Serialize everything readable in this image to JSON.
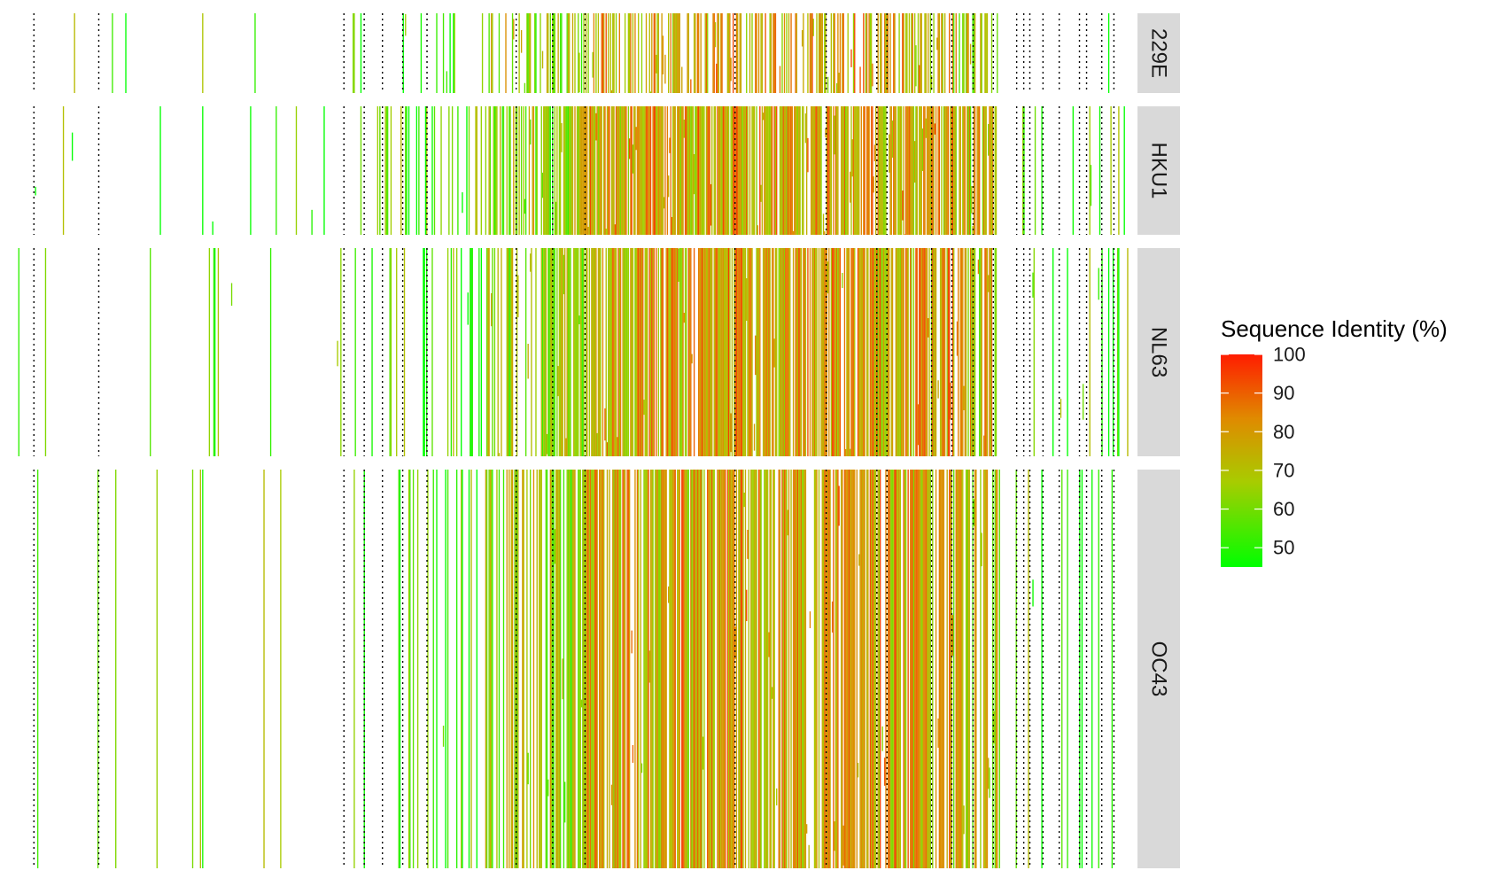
{
  "chart_data": {
    "type": "heatmap",
    "title": "",
    "xlabel": "",
    "ylabel": "",
    "panels": [
      {
        "name": "229E"
      },
      {
        "name": "HKU1"
      },
      {
        "name": "NL63"
      },
      {
        "name": "OC43"
      }
    ],
    "value_range": [
      45,
      100
    ],
    "legend": {
      "title": "Sequence Identity (%)",
      "ticks": [
        100,
        90,
        80,
        70,
        60,
        50
      ],
      "placement": "right",
      "colors": [
        "#00ff00",
        "#b4c800",
        "#e08a00",
        "#ff2000"
      ]
    },
    "grid": false,
    "reference_line_style": "dotted"
  }
}
